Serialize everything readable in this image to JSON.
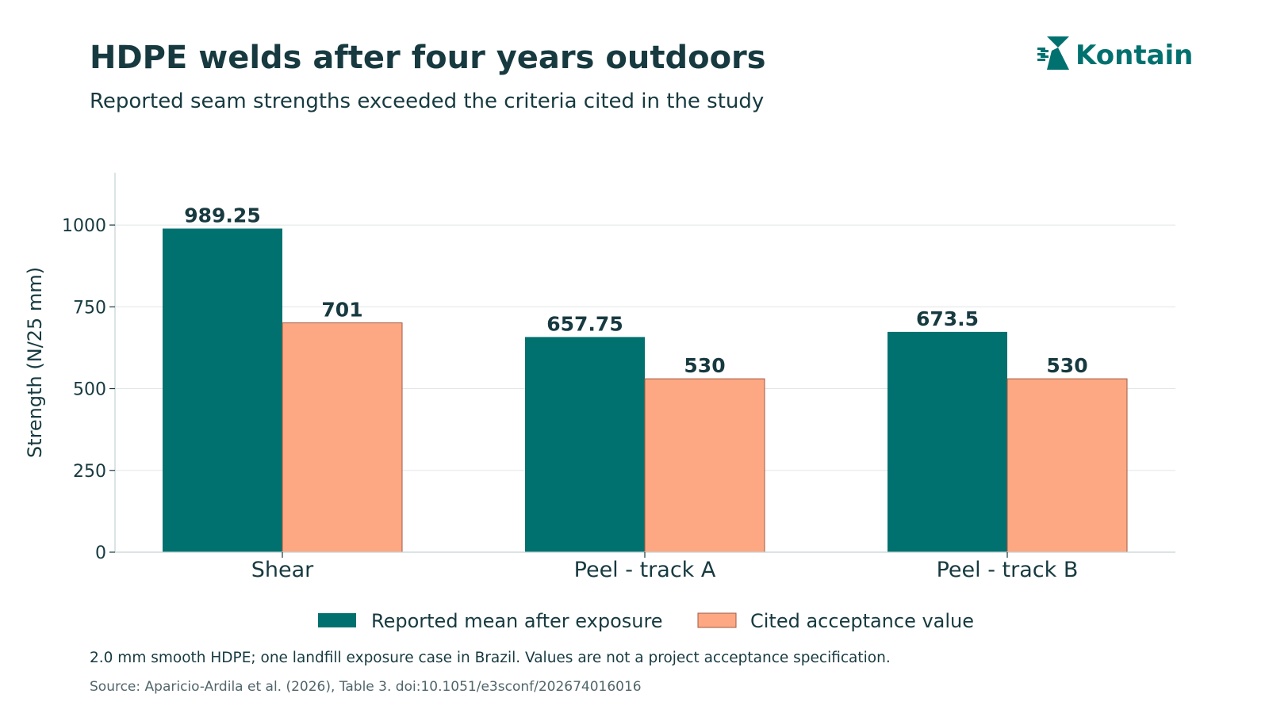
{
  "header": {
    "title": "HDPE welds after four years outdoors",
    "subtitle": "Reported seam strengths exceeded the criteria cited in the study"
  },
  "brand": {
    "name": "Kontain",
    "color": "#00716f",
    "icon": "k-mark-logo"
  },
  "chart_data": {
    "type": "bar",
    "title": "HDPE welds after four years outdoors",
    "subtitle": "Reported seam strengths exceeded the criteria cited in the study",
    "categories": [
      "Shear",
      "Peel - track A",
      "Peel - track B"
    ],
    "series": [
      {
        "name": "Reported mean after exposure",
        "values": [
          989.25,
          657.75,
          673.5
        ],
        "labels": [
          "989.25",
          "657.75",
          "673.5"
        ],
        "color": "#00716f"
      },
      {
        "name": "Cited acceptance value",
        "values": [
          701,
          530,
          530
        ],
        "labels": [
          "701",
          "530",
          "530"
        ],
        "color": "#fda882",
        "edge_color": "#a05a44"
      }
    ],
    "xlabel": "",
    "ylabel": "Strength (N/25 mm)",
    "ylim": [
      0,
      1160
    ],
    "yticks": [
      0,
      250,
      500,
      750,
      1000
    ],
    "ytick_labels": [
      "0",
      "250",
      "500",
      "750",
      "1000"
    ],
    "grid": "horizontal",
    "legend_position": "bottom-center"
  },
  "footer": {
    "note": "2.0 mm smooth HDPE; one landfill exposure case in Brazil. Values are not a project acceptance specification.",
    "source": "Source: Aparicio-Ardila et al. (2026), Table 3. doi:10.1051/e3sconf/202674016016"
  }
}
